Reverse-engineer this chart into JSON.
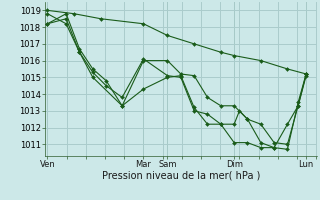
{
  "title": "",
  "xlabel": "Pression niveau de la mer( hPa )",
  "bg_color": "#cce8e8",
  "grid_color": "#aacccc",
  "line_color": "#1a5c1a",
  "marker_color": "#1a5c1a",
  "ylim": [
    1010.3,
    1019.5
  ],
  "yticks": [
    1011,
    1012,
    1013,
    1014,
    1015,
    1016,
    1017,
    1018,
    1019
  ],
  "xlim": [
    -0.1,
    10.1
  ],
  "x_day_labels": [
    {
      "label": "Ven",
      "x": 0.0
    },
    {
      "label": "Mar",
      "x": 3.6
    },
    {
      "label": "Sam",
      "x": 4.5
    },
    {
      "label": "Dim",
      "x": 7.0
    },
    {
      "label": "Lun",
      "x": 9.7
    }
  ],
  "vlines": [
    0.0,
    3.6,
    4.5,
    7.0,
    9.7
  ],
  "series": [
    {
      "x": [
        0.0,
        1.0,
        2.0,
        3.6,
        4.5,
        5.5,
        6.5,
        7.0,
        8.0,
        9.0,
        9.7
      ],
      "y": [
        1019.0,
        1018.8,
        1018.5,
        1018.2,
        1017.5,
        1017.0,
        1016.5,
        1016.3,
        1016.0,
        1015.5,
        1015.2
      ]
    },
    {
      "x": [
        0.0,
        0.7,
        1.2,
        1.7,
        2.2,
        2.8,
        3.6,
        4.5,
        5.0,
        5.5,
        6.0,
        6.5,
        7.0,
        7.5,
        8.0,
        8.5,
        9.0,
        9.4,
        9.7
      ],
      "y": [
        1018.2,
        1018.8,
        1016.7,
        1015.5,
        1014.8,
        1013.3,
        1016.0,
        1016.0,
        1015.2,
        1015.1,
        1013.8,
        1013.3,
        1013.3,
        1012.5,
        1012.2,
        1011.1,
        1011.0,
        1013.3,
        1015.2
      ]
    },
    {
      "x": [
        0.0,
        0.7,
        1.2,
        1.7,
        2.2,
        2.8,
        3.6,
        4.5,
        5.0,
        5.5,
        6.0,
        6.5,
        7.0,
        7.2,
        7.5,
        8.0,
        8.5,
        9.0,
        9.4,
        9.7
      ],
      "y": [
        1018.2,
        1018.5,
        1016.5,
        1015.3,
        1014.5,
        1013.8,
        1016.1,
        1015.1,
        1015.0,
        1013.0,
        1012.8,
        1012.2,
        1012.2,
        1013.0,
        1012.5,
        1011.1,
        1010.8,
        1010.7,
        1013.5,
        1015.2
      ]
    },
    {
      "x": [
        0.0,
        0.7,
        1.2,
        1.7,
        2.8,
        3.6,
        4.5,
        5.0,
        5.5,
        6.0,
        6.5,
        7.0,
        7.5,
        8.0,
        8.5,
        9.0,
        9.4,
        9.7
      ],
      "y": [
        1018.8,
        1018.2,
        1016.5,
        1015.0,
        1013.3,
        1014.3,
        1015.0,
        1015.1,
        1013.2,
        1012.2,
        1012.2,
        1011.1,
        1011.1,
        1010.8,
        1010.8,
        1012.2,
        1013.3,
        1015.1
      ]
    }
  ]
}
